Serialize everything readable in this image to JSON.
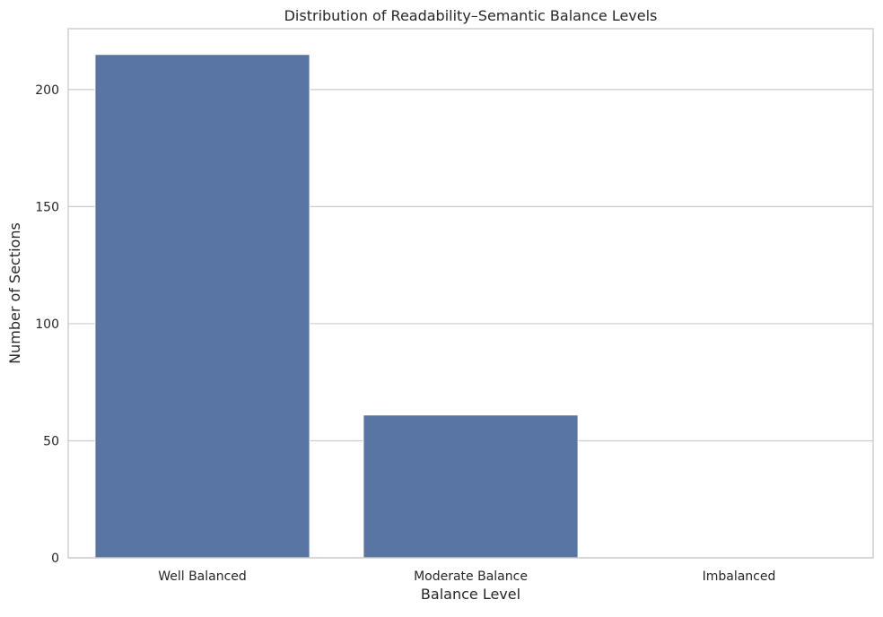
{
  "chart_data": {
    "type": "bar",
    "title": "Distribution of Readability–Semantic Balance Levels",
    "xlabel": "Balance Level",
    "ylabel": "Number of Sections",
    "categories": [
      "Well Balanced",
      "Moderate Balance",
      "Imbalanced"
    ],
    "values": [
      215,
      61,
      0
    ],
    "ylim": [
      0,
      226
    ],
    "yticks": [
      0,
      50,
      100,
      150,
      200
    ],
    "grid": "horizontal",
    "bar_color": "#5975a4",
    "grid_color": "#cccccc"
  }
}
